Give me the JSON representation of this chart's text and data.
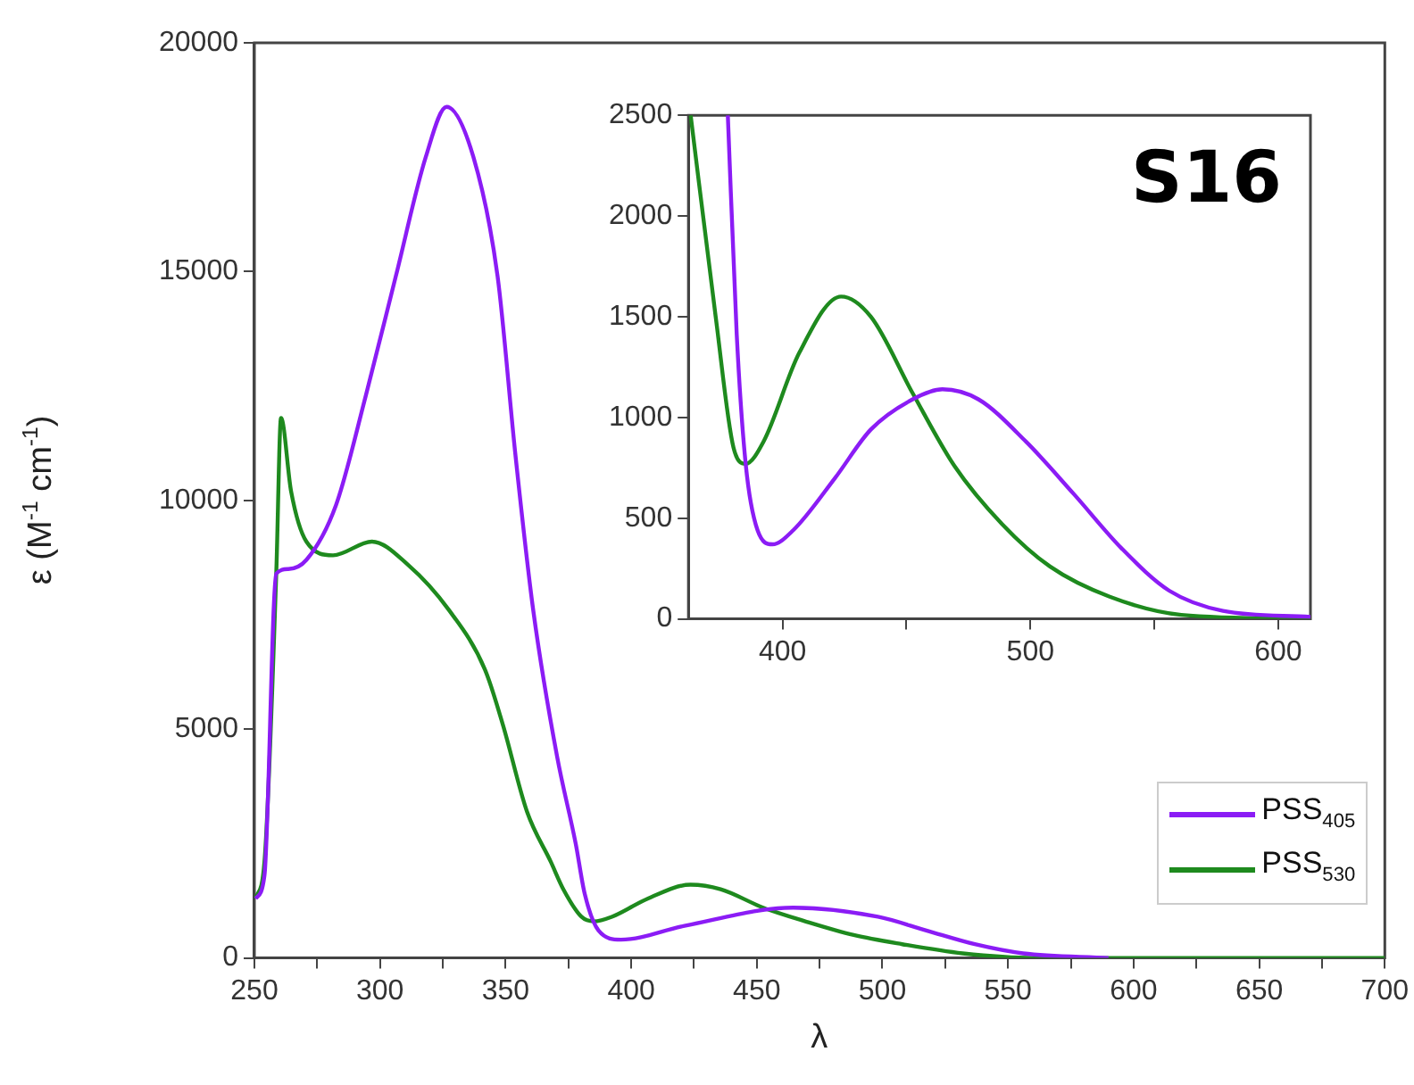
{
  "chart_data": [
    {
      "type": "line",
      "xlabel": "λ",
      "ylabel": "ε (M$^{-1}$ cm$^{-1}$)",
      "legend": "bottom right",
      "marker": "none",
      "xlim": [
        250,
        700
      ],
      "ylim": [
        0,
        20000
      ],
      "xticks": [
        250,
        {
          "value": 275,
          "label": null
        },
        300,
        {
          "value": 325,
          "label": null
        },
        350,
        {
          "value": 375,
          "label": null
        },
        400,
        {
          "value": 425,
          "label": null
        },
        450,
        {
          "value": 475,
          "label": null
        },
        500,
        {
          "value": 525,
          "label": null
        },
        550,
        {
          "value": 575,
          "label": null
        },
        600,
        {
          "value": 625,
          "label": null
        },
        650,
        {
          "value": 675,
          "label": null
        },
        700
      ],
      "yticks": [
        0,
        5000,
        10000,
        15000,
        20000
      ],
      "series": [
        {
          "name": "PSS$_{405}$",
          "color": "#8b1cf5",
          "x": [
            250.5,
            254,
            258.7,
            263.5,
            270.7,
            282.5,
            294.4,
            306.3,
            318.2,
            326.5,
            337.2,
            346.8,
            353.9,
            361,
            370.5,
            377.9,
            381.5,
            387,
            395.9,
            421.2,
            464.5,
            498.2,
            517.5,
            536.8,
            556,
            590
          ],
          "values": [
            1300,
            1800,
            8400,
            8500,
            8700,
            9900,
            12300,
            14900,
            17500,
            18600,
            17500,
            14900,
            11000,
            7600,
            4400,
            2500,
            1400,
            600,
            400,
            700,
            1100,
            900,
            600,
            300,
            100,
            0
          ]
        },
        {
          "name": "PSS$_{530}$",
          "color": "#1e8a1e",
          "x": [
            250.5,
            254,
            258.7,
            260.6,
            264.6,
            270.7,
            281.3,
            296.8,
            311,
            327.5,
            341.8,
            348.9,
            358.5,
            368,
            373,
            380.2,
            385.1,
            392.3,
            406.7,
            423.6,
            435.6,
            452.5,
            469.3,
            488.6,
            507.9,
            532,
            560.9,
            613.8,
            650,
            700
          ],
          "values": [
            1300,
            2100,
            8400,
            11800,
            10200,
            9100,
            8800,
            9100,
            8600,
            7600,
            6300,
            5100,
            3200,
            2100,
            1500,
            900,
            800,
            900,
            1300,
            1600,
            1500,
            1100,
            800,
            500,
            300,
            100,
            0,
            0,
            0,
            0
          ]
        }
      ]
    },
    {
      "type": "line",
      "marker": "none",
      "annotations": [
        "S16"
      ],
      "xlim": [
        362,
        613
      ],
      "ylim": [
        0,
        2500
      ],
      "xticks": [
        400,
        {
          "value": 450,
          "label": null
        },
        500,
        {
          "value": 550,
          "label": null
        },
        600
      ],
      "yticks": [
        0,
        500,
        1000,
        1500,
        2000,
        2500
      ],
      "series": [
        {
          "color": "#8b1cf5",
          "x": [
            377.9,
            381.5,
            385.1,
            389.9,
            395.9,
            404.3,
            421.2,
            435.6,
            452.5,
            464.5,
            479,
            498.2,
            517.5,
            536.8,
            556,
            577.7,
            613
          ],
          "values": [
            2500,
            1410,
            770,
            440,
            370,
            440,
            700,
            940,
            1090,
            1140,
            1090,
            880,
            620,
            350,
            140,
            40,
            10
          ]
        },
        {
          "color": "#1e8a1e",
          "x": [
            362.9,
            373,
            380.2,
            385.1,
            392.3,
            406.7,
            423.6,
            435.6,
            452.5,
            469.3,
            488.6,
            507.9,
            532,
            560.9,
            613
          ],
          "values": [
            2500,
            1500,
            850,
            770,
            880,
            1320,
            1600,
            1500,
            1120,
            760,
            470,
            260,
            110,
            20,
            0
          ]
        }
      ]
    }
  ]
}
